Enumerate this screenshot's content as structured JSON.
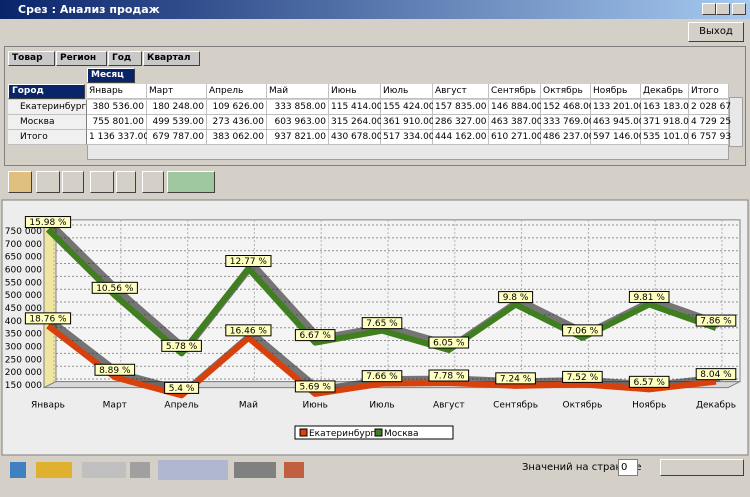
{
  "window": {
    "title": "Срез : Анализ продаж",
    "exit_button": "Выход"
  },
  "fields": {
    "filters": [
      "Товар",
      "Регион",
      "Год",
      "Квартал"
    ],
    "row_field": "Город",
    "column_field": "Месяц"
  },
  "table": {
    "columns": [
      "Январь",
      "Март",
      "Апрель",
      "Май",
      "Июнь",
      "Июль",
      "Август",
      "Сентябрь",
      "Октябрь",
      "Ноябрь",
      "Декабрь",
      "Итого"
    ],
    "rows": [
      {
        "label": "Екатеринбург",
        "cells": [
          "380 536.00",
          "180 248.00",
          "109 626.00",
          "333 858.00",
          "115 414.00",
          "155 424.00",
          "157 835.00",
          "146 884.00",
          "152 468.00",
          "133 201.00",
          "163 183.00",
          "2 028 67"
        ]
      },
      {
        "label": "Москва",
        "cells": [
          "755 801.00",
          "499 539.00",
          "273 436.00",
          "603 963.00",
          "315 264.00",
          "361 910.00",
          "286 327.00",
          "463 387.00",
          "333 769.00",
          "463 945.00",
          "371 918.00",
          "4 729 25"
        ]
      },
      {
        "label": "Итого",
        "cells": [
          "1 136 337.00",
          "679 787.00",
          "383 062.00",
          "937 821.00",
          "430 678.00",
          "517 334.00",
          "444 162.00",
          "610 271.00",
          "486 237.00",
          "597 146.00",
          "535 101.00",
          "6 757 93"
        ]
      }
    ]
  },
  "chart_data": {
    "type": "line",
    "categories": [
      "Январь",
      "Март",
      "Апрель",
      "Май",
      "Июнь",
      "Июль",
      "Август",
      "Сентябрь",
      "Октябрь",
      "Ноябрь",
      "Декабрь"
    ],
    "series": [
      {
        "name": "Екатеринбург",
        "color": "#d8400c",
        "values": [
          380536,
          180248,
          109626,
          333858,
          115414,
          155424,
          157835,
          146884,
          152468,
          133201,
          163183
        ],
        "point_labels": [
          "18.76 %",
          "8.89 %",
          "5.4 %",
          "16.46 %",
          "5.69 %",
          "7.66 %",
          "7.78 %",
          "7.24 %",
          "7.52 %",
          "6.57 %",
          "8.04 %"
        ]
      },
      {
        "name": "Москва",
        "color": "#3f7f1f",
        "values": [
          755801,
          499539,
          273436,
          603963,
          315264,
          361910,
          286327,
          463387,
          333769,
          463945,
          371918
        ],
        "point_labels": [
          "15.98 %",
          "10.56 %",
          "5.78 %",
          "12.77 %",
          "6.67 %",
          "7.65 %",
          "6.05 %",
          "9.8 %",
          "7.06 %",
          "9.81 %",
          "7.86 %"
        ]
      }
    ],
    "ylim": [
      140000,
      770000
    ],
    "yticks": [
      {
        "value": 150000,
        "label": "150 000"
      },
      {
        "value": 200000,
        "label": "200 000"
      },
      {
        "value": 250000,
        "label": "250 000"
      },
      {
        "value": 300000,
        "label": "300 000"
      },
      {
        "value": 350000,
        "label": "350 000"
      },
      {
        "value": 400000,
        "label": "400 000"
      },
      {
        "value": 450000,
        "label": "450 000"
      },
      {
        "value": 500000,
        "label": "500 000"
      },
      {
        "value": 550000,
        "label": "550 000"
      },
      {
        "value": 600000,
        "label": "600 000"
      },
      {
        "value": 650000,
        "label": "650 000"
      },
      {
        "value": 700000,
        "label": "700 000"
      },
      {
        "value": 750000,
        "label": "750 000"
      }
    ],
    "grid": true,
    "legend": "bottom"
  },
  "footer": {
    "page_size_label": "Значений на странице",
    "page_size_value": "0"
  }
}
